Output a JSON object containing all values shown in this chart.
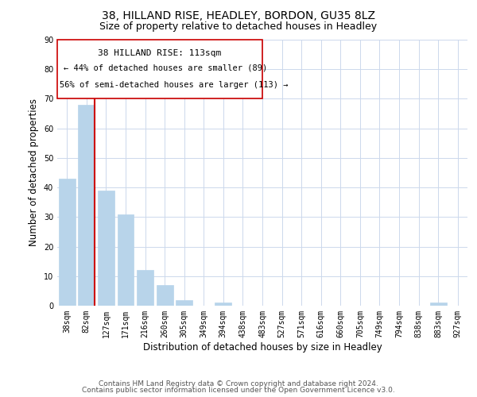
{
  "title": "38, HILLAND RISE, HEADLEY, BORDON, GU35 8LZ",
  "subtitle": "Size of property relative to detached houses in Headley",
  "xlabel": "Distribution of detached houses by size in Headley",
  "ylabel": "Number of detached properties",
  "bin_labels": [
    "38sqm",
    "82sqm",
    "127sqm",
    "171sqm",
    "216sqm",
    "260sqm",
    "305sqm",
    "349sqm",
    "394sqm",
    "438sqm",
    "483sqm",
    "527sqm",
    "571sqm",
    "616sqm",
    "660sqm",
    "705sqm",
    "749sqm",
    "794sqm",
    "838sqm",
    "883sqm",
    "927sqm"
  ],
  "bar_heights": [
    43,
    68,
    39,
    31,
    12,
    7,
    2,
    0,
    1,
    0,
    0,
    0,
    0,
    0,
    0,
    0,
    0,
    0,
    0,
    1,
    0
  ],
  "bar_color": "#b8d4ea",
  "bar_edge_color": "#b8d4ea",
  "vline_color": "#cc0000",
  "annotation_title": "38 HILLAND RISE: 113sqm",
  "annotation_line1": "← 44% of detached houses are smaller (89)",
  "annotation_line2": "56% of semi-detached houses are larger (113) →",
  "annotation_box_color": "#ffffff",
  "annotation_box_edge": "#cc0000",
  "ylim": [
    0,
    90
  ],
  "yticks": [
    0,
    10,
    20,
    30,
    40,
    50,
    60,
    70,
    80,
    90
  ],
  "footer_line1": "Contains HM Land Registry data © Crown copyright and database right 2024.",
  "footer_line2": "Contains public sector information licensed under the Open Government Licence v3.0.",
  "bg_color": "#ffffff",
  "grid_color": "#ccd8ec",
  "title_fontsize": 10,
  "subtitle_fontsize": 9,
  "axis_label_fontsize": 8.5,
  "tick_fontsize": 7,
  "footer_fontsize": 6.5,
  "ann_title_fontsize": 8,
  "ann_text_fontsize": 7.5
}
